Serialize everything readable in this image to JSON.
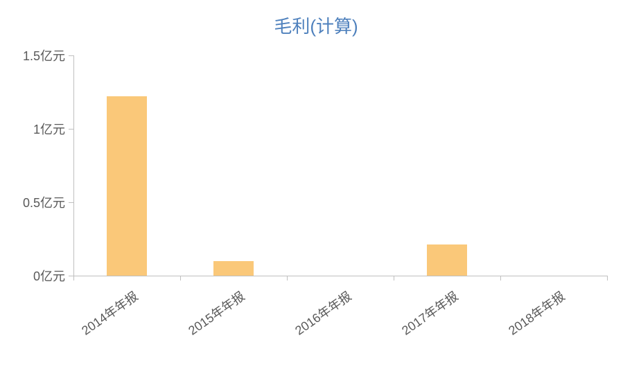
{
  "chart": {
    "type": "bar",
    "title": "毛利(计算)",
    "title_color": "#4f81bd",
    "title_fontsize": 26,
    "categories": [
      "2014年年报",
      "2015年年报",
      "2016年年报",
      "2017年年报",
      "2018年年报"
    ],
    "values": [
      1.22,
      0.1,
      0.0,
      0.21,
      0.0
    ],
    "bar_color": "#fac879",
    "bar_width_ratio": 0.38,
    "ylim": [
      0,
      1.5
    ],
    "ytick_values": [
      0,
      0.5,
      1,
      1.5
    ],
    "ytick_labels": [
      "0亿元",
      "0.5亿元",
      "1亿元",
      "1.5亿元"
    ],
    "axis_color": "#bfbfbf",
    "tick_label_color": "#595959",
    "tick_fontsize": 18,
    "x_label_rotation_deg": -35,
    "background_color": "#ffffff"
  }
}
